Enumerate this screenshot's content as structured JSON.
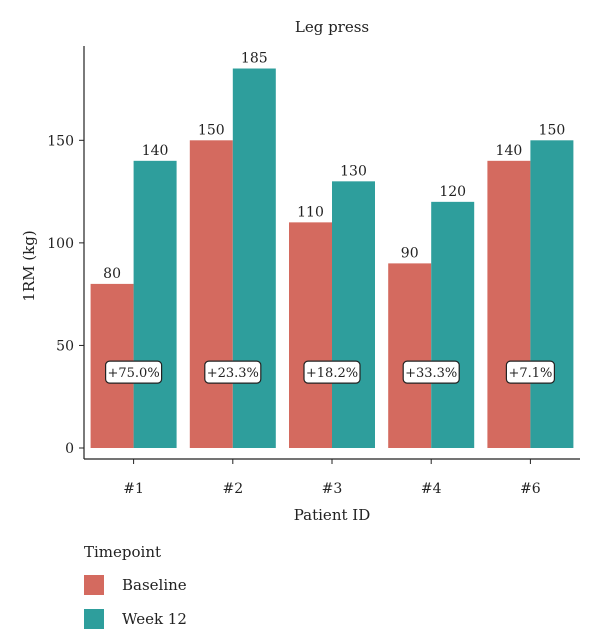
{
  "chart_data": {
    "type": "bar",
    "title": "Leg press",
    "xlabel": "Patient ID",
    "ylabel": "1RM (kg)",
    "categories": [
      "#1",
      "#2",
      "#3",
      "#4",
      "#6"
    ],
    "series": [
      {
        "name": "Baseline",
        "color": "#d46a5f",
        "values": [
          80,
          150,
          110,
          90,
          140
        ]
      },
      {
        "name": "Week 12",
        "color": "#2e9e9c",
        "values": [
          140,
          185,
          130,
          120,
          150
        ]
      }
    ],
    "annotations": [
      "+75.0%",
      "+23.3%",
      "+18.2%",
      "+33.3%",
      "+7.1%"
    ],
    "annotation_y": 37,
    "yticks": [
      0,
      50,
      100,
      150
    ],
    "ylim": [
      0,
      195
    ],
    "grid": false,
    "legend_position": "bottom-left"
  },
  "legend": {
    "title": "Timepoint",
    "items": [
      {
        "label": "Baseline",
        "color": "#d46a5f"
      },
      {
        "label": "Week 12",
        "color": "#2e9e9c"
      }
    ]
  }
}
